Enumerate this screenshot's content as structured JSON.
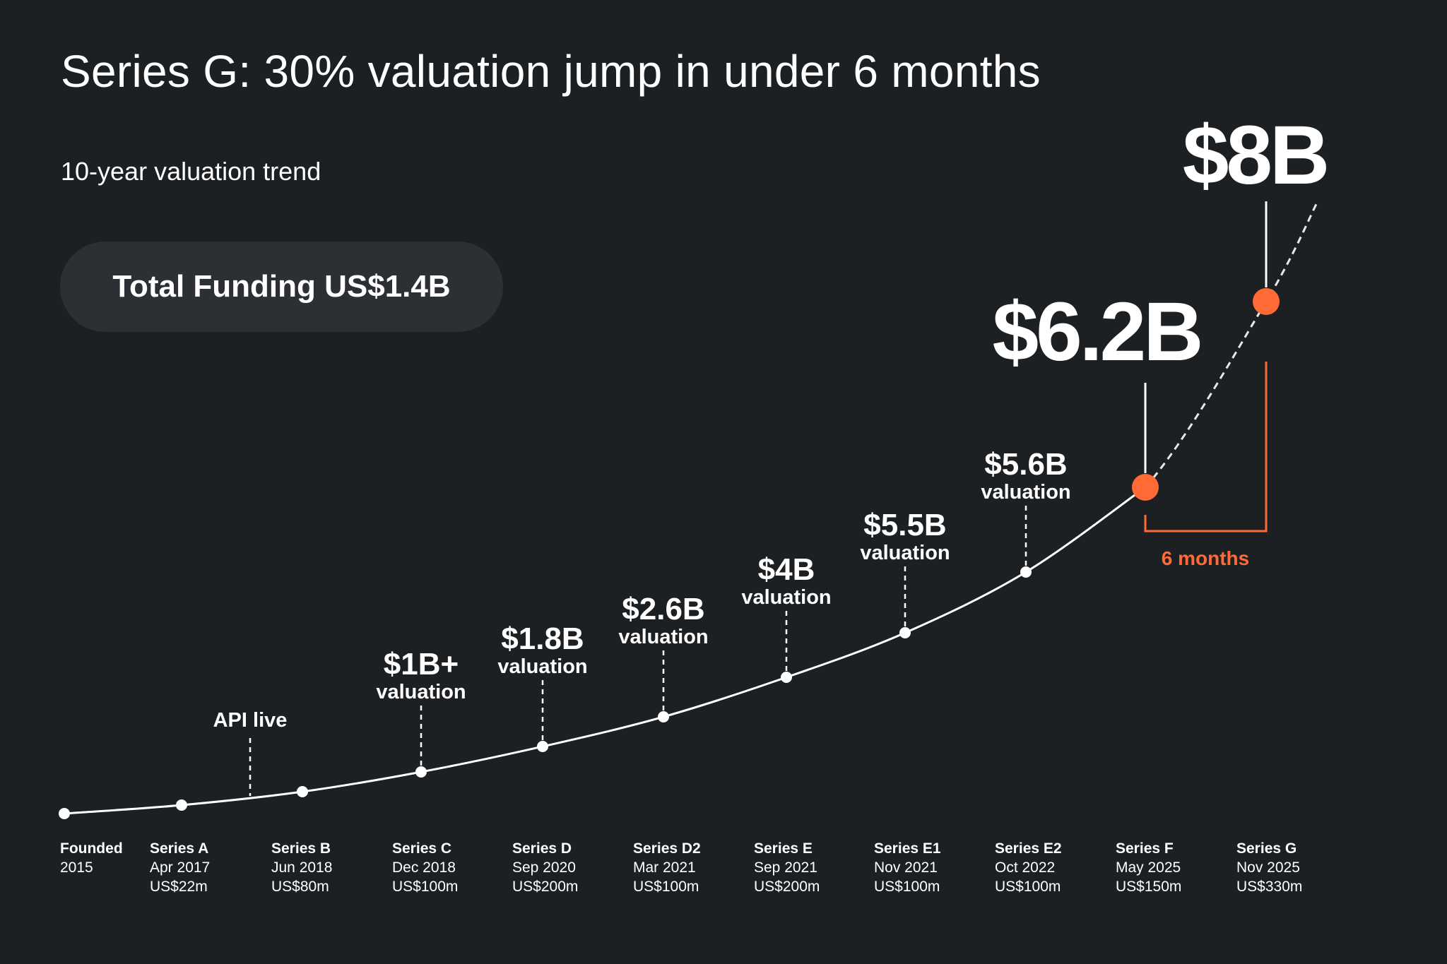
{
  "title": "Series G: 30% valuation jump in under 6 months",
  "subtitle": "10-year valuation trend",
  "total_funding": "Total Funding US$1.4B",
  "colors": {
    "background": "#1d2023",
    "pill": "#2c2f33",
    "accent": "#ff6a35",
    "line": "#ffffff"
  },
  "annotation_6_months": "6 months",
  "chart_data": {
    "type": "line",
    "title": "Series G: 30% valuation jump in under 6 months",
    "subtitle": "10-year valuation trend",
    "grid": false,
    "rounds": [
      {
        "name": "Founded",
        "date": "2015",
        "amount": ""
      },
      {
        "name": "Series A",
        "date": "Apr 2017",
        "amount": "US$22m"
      },
      {
        "name": "Series B",
        "date": "Jun 2018",
        "amount": "US$80m"
      },
      {
        "name": "Series C",
        "date": "Dec 2018",
        "amount": "US$100m",
        "valuation": "$1B+",
        "valuation_label": "valuation"
      },
      {
        "name": "Series D",
        "date": "Sep 2020",
        "amount": "US$200m",
        "valuation": "$1.8B",
        "valuation_label": "valuation"
      },
      {
        "name": "Series D2",
        "date": "Mar 2021",
        "amount": "US$100m",
        "valuation": "$2.6B",
        "valuation_label": "valuation"
      },
      {
        "name": "Series E",
        "date": "Sep 2021",
        "amount": "US$200m",
        "valuation": "$4B",
        "valuation_label": "valuation"
      },
      {
        "name": "Series E1",
        "date": "Nov 2021",
        "amount": "US$100m",
        "valuation": "$5.5B",
        "valuation_label": "valuation"
      },
      {
        "name": "Series E2",
        "date": "Oct 2022",
        "amount": "US$100m",
        "valuation": "$5.6B",
        "valuation_label": "valuation"
      },
      {
        "name": "Series F",
        "date": "May 2025",
        "amount": "US$150m",
        "valuation": "$6.2B",
        "highlight": true
      },
      {
        "name": "Series G",
        "date": "Nov 2025",
        "amount": "US$330m",
        "valuation": "$8B",
        "highlight": true
      }
    ],
    "valuations_billion_usd": [
      null,
      null,
      null,
      1,
      1.8,
      2.6,
      4,
      5.5,
      5.6,
      6.2,
      8
    ],
    "events": [
      {
        "label": "API live",
        "between": [
          "Series A",
          "Series B"
        ]
      }
    ]
  }
}
